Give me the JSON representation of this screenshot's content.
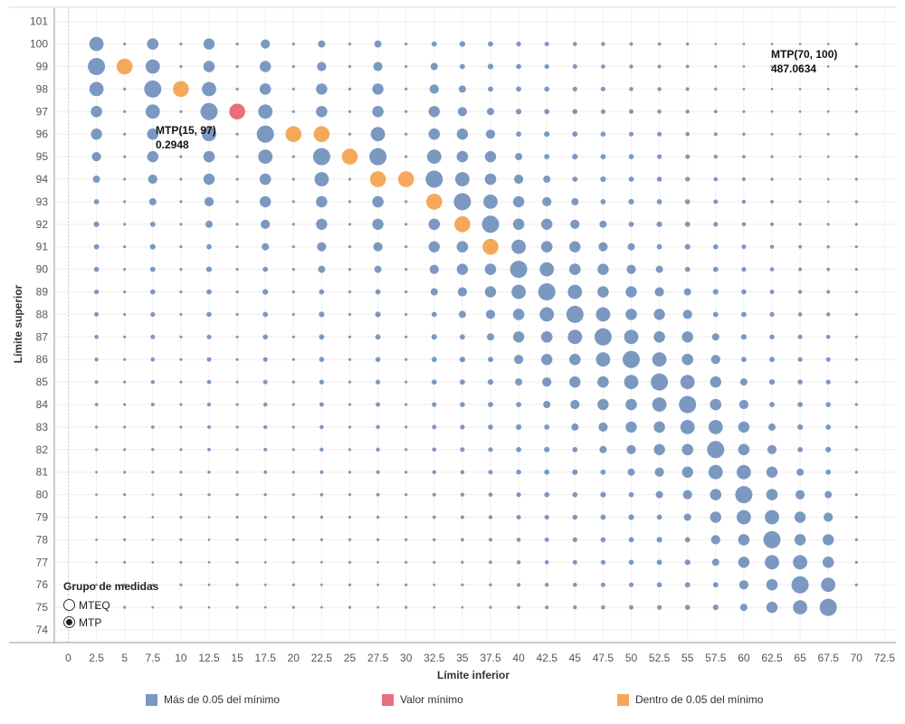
{
  "chart_data": {
    "type": "scatter",
    "title": "",
    "xlabel": "Límite inferior",
    "ylabel": "Límite superior",
    "x_ticks": [
      "0",
      "2.5",
      "5",
      "7.5",
      "10",
      "12.5",
      "15",
      "17.5",
      "20",
      "22.5",
      "25",
      "27.5",
      "30",
      "32.5",
      "35",
      "37.5",
      "40",
      "42.5",
      "45",
      "47.5",
      "50",
      "52.5",
      "55",
      "57.5",
      "60",
      "62.5",
      "65",
      "67.5",
      "70",
      "72.5"
    ],
    "y_ticks": [
      "74",
      "75",
      "76",
      "77",
      "78",
      "79",
      "80",
      "81",
      "82",
      "83",
      "84",
      "85",
      "86",
      "87",
      "88",
      "89",
      "90",
      "91",
      "92",
      "93",
      "94",
      "95",
      "96",
      "97",
      "98",
      "99",
      "100",
      "101"
    ],
    "xlim": [
      0,
      72.5
    ],
    "ylim": [
      74,
      101
    ],
    "grid": true,
    "size_encoding": "MTP",
    "size_legend": {
      "title": "Grupo de medidas",
      "items": [
        "MTEQ",
        "MTP"
      ]
    },
    "color_legend": [
      {
        "label": "Más de 0.05 del mínimo",
        "color": "#7b98c1"
      },
      {
        "label": "Valor mínimo",
        "color": "#e8707a"
      },
      {
        "label": "Dentro de 0.05 del mínimo",
        "color": "#f5a85a"
      }
    ],
    "highlight_points": [
      {
        "x": 15,
        "y": 97,
        "group": "Valor mínimo"
      },
      {
        "x": 5,
        "y": 99,
        "group": "Dentro de 0.05 del mínimo"
      },
      {
        "x": 10,
        "y": 98,
        "group": "Dentro de 0.05 del mínimo"
      },
      {
        "x": 20,
        "y": 96,
        "group": "Dentro de 0.05 del mínimo"
      },
      {
        "x": 22.5,
        "y": 96,
        "group": "Dentro de 0.05 del mínimo"
      },
      {
        "x": 25,
        "y": 95,
        "group": "Dentro de 0.05 del mínimo"
      },
      {
        "x": 27.5,
        "y": 94,
        "group": "Dentro de 0.05 del mínimo"
      },
      {
        "x": 30,
        "y": 94,
        "group": "Dentro de 0.05 del mínimo"
      },
      {
        "x": 32.5,
        "y": 93,
        "group": "Dentro de 0.05 del mínimo"
      },
      {
        "x": 35,
        "y": 92,
        "group": "Dentro de 0.05 del mínimo"
      },
      {
        "x": 37.5,
        "y": 91,
        "group": "Dentro de 0.05 del mínimo"
      }
    ],
    "size_peaks": [
      {
        "x": 2.5,
        "y": 99
      },
      {
        "x": 7.5,
        "y": 98
      },
      {
        "x": 12.5,
        "y": 97
      },
      {
        "x": 17.5,
        "y": 96
      },
      {
        "x": 22.5,
        "y": 95
      },
      {
        "x": 27.5,
        "y": 95
      },
      {
        "x": 32.5,
        "y": 94
      },
      {
        "x": 35,
        "y": 93
      },
      {
        "x": 37.5,
        "y": 92
      },
      {
        "x": 40,
        "y": 90
      },
      {
        "x": 42.5,
        "y": 89
      },
      {
        "x": 45,
        "y": 88
      },
      {
        "x": 47.5,
        "y": 87
      },
      {
        "x": 50,
        "y": 86
      },
      {
        "x": 52.5,
        "y": 85
      },
      {
        "x": 55,
        "y": 84
      },
      {
        "x": 57.5,
        "y": 82
      },
      {
        "x": 60,
        "y": 80
      },
      {
        "x": 62.5,
        "y": 78
      },
      {
        "x": 65,
        "y": 76
      },
      {
        "x": 67.5,
        "y": 75
      }
    ],
    "annotations": [
      {
        "label": "MTP(15, 97)",
        "value": "0.2948",
        "x": 15,
        "y": 97
      },
      {
        "label": "MTP(70, 100)",
        "value": "487.0634",
        "x": 70,
        "y": 100
      }
    ]
  }
}
